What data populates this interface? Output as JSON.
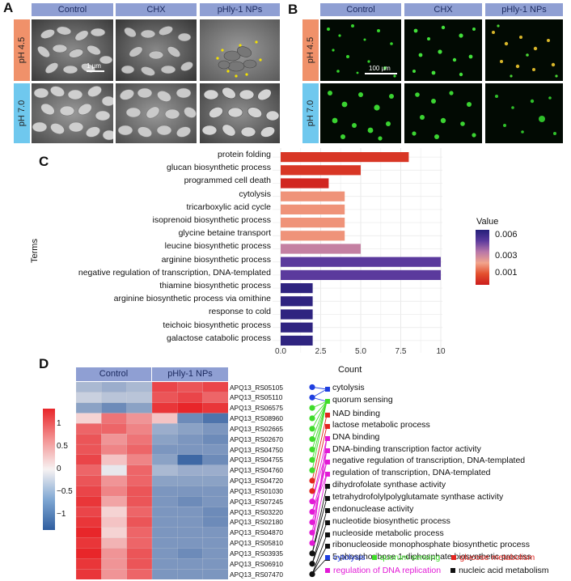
{
  "panel_letters": {
    "a": "A",
    "b": "B",
    "c": "C",
    "d": "D"
  },
  "panel_a": {
    "columns": [
      "Control",
      "CHX",
      "pHly-1 NPs"
    ],
    "rows": [
      "pH 4.5",
      "pH 7.0"
    ],
    "scale_bar": "1 µm"
  },
  "panel_b": {
    "columns": [
      "Control",
      "CHX",
      "pHly-1 NPs"
    ],
    "rows": [
      "pH 4.5",
      "pH 7.0"
    ],
    "scale_bar": "100 µm"
  },
  "colors": {
    "row_ph45": "#f0916a",
    "row_ph70": "#6fc8ee",
    "header": "#8f9fd3"
  },
  "chart_data": [
    {
      "type": "bar",
      "orientation": "horizontal",
      "categories": [
        "protein folding",
        "glucan biosynthetic process",
        "programmed cell death",
        "cytolysis",
        "tricarboxylic acid cycle",
        "isoprenoid biosynthetic process",
        "glycine betaine transport",
        "leucine biosynthetic process",
        "arginine biosynthetic process",
        "negative regulation of transcription, DNA-templated",
        "thiamine biosynthetic process",
        "arginine biosynthetic process via omithine",
        "response to cold",
        "teichoic  biosynthetic process",
        "galactose catabolic process"
      ],
      "values": [
        8,
        5,
        3,
        4,
        4,
        4,
        4,
        5,
        10,
        10,
        2,
        2,
        2,
        2,
        2
      ],
      "pvalues": [
        0.0015,
        0.0015,
        0.0012,
        0.0028,
        0.0028,
        0.0028,
        0.0028,
        0.0042,
        0.0055,
        0.0055,
        0.0063,
        0.0063,
        0.0063,
        0.0063,
        0.0063
      ],
      "xlabel": "Count",
      "ylabel": "Terms",
      "xlim": [
        0,
        10
      ],
      "xticks": [
        "0.0",
        "2.5",
        "5.0",
        "7.5",
        "10"
      ],
      "grid": true,
      "legend": {
        "title": "Value",
        "ticks": [
          "0.006",
          "0.003",
          "0.001"
        ],
        "placement": "right"
      }
    },
    {
      "type": "heatmap",
      "columns": [
        "Control",
        "pHly-1 NPs"
      ],
      "genes": [
        "APQ13_RS05105",
        "APQ13_RS05110",
        "APQ13_RS06575",
        "APQ13_RS08960",
        "APQ13_RS02665",
        "APQ13_RS02670",
        "APQ13_RS04750",
        "APQ13_RS04755",
        "APQ13_RS04760",
        "APQ13_RS04720",
        "APQ13_RS01030",
        "APQ13_RS07245",
        "APQ13_RS03220",
        "APQ13_RS02180",
        "APQ13_RS04870",
        "APQ13_RS05810",
        "APQ13_RS03935",
        "APQ13_RS06910",
        "APQ13_RS07470"
      ],
      "values": [
        [
          -0.5,
          -0.6,
          -0.5,
          1.1,
          1.0,
          1.1
        ],
        [
          -0.3,
          -0.4,
          -0.4,
          1.0,
          1.1,
          0.9
        ],
        [
          -0.7,
          -0.9,
          -0.7,
          1.2,
          1.3,
          1.2
        ],
        [
          0.2,
          0.8,
          0.6,
          0.3,
          -0.9,
          -1.1
        ],
        [
          0.9,
          0.9,
          0.7,
          -0.6,
          -0.7,
          -0.8
        ],
        [
          1.0,
          0.6,
          0.8,
          -0.7,
          -0.8,
          -0.9
        ],
        [
          1.0,
          0.7,
          0.9,
          -0.8,
          -0.8,
          -0.8
        ],
        [
          1.1,
          0.3,
          0.7,
          -0.7,
          -1.2,
          -0.9
        ],
        [
          0.9,
          -0.1,
          0.9,
          -0.5,
          -0.6,
          -0.6
        ],
        [
          1.0,
          0.6,
          0.9,
          -0.7,
          -0.7,
          -0.7
        ],
        [
          1.1,
          0.7,
          1.0,
          -0.8,
          -0.8,
          -0.8
        ],
        [
          1.2,
          0.5,
          1.0,
          -0.8,
          -0.9,
          -0.8
        ],
        [
          1.1,
          0.2,
          0.9,
          -0.8,
          -0.8,
          -0.9
        ],
        [
          1.2,
          0.3,
          1.0,
          -0.8,
          -0.8,
          -0.9
        ],
        [
          1.3,
          0.2,
          0.9,
          -0.8,
          -0.8,
          -0.8
        ],
        [
          1.2,
          0.4,
          0.9,
          -0.8,
          -0.8,
          -0.8
        ],
        [
          1.3,
          0.6,
          1.0,
          -0.8,
          -0.9,
          -0.8
        ],
        [
          1.2,
          0.6,
          1.0,
          -0.8,
          -0.8,
          -0.8
        ],
        [
          1.2,
          0.6,
          0.9,
          -0.8,
          -0.8,
          -0.8
        ]
      ],
      "colorbar_ticks": [
        "1",
        "0.5",
        "0",
        "−0.5",
        "−1"
      ],
      "annotations": [
        {
          "label": "cytolysis",
          "color": "#1f3fe0"
        },
        {
          "label": "quorum sensing",
          "color": "#3fdc2a"
        },
        {
          "label": "NAD binding",
          "color": "#e3251f"
        },
        {
          "label": "lactose metabolic process",
          "color": "#e3251f"
        },
        {
          "label": "DNA binding",
          "color": "#e21ad6"
        },
        {
          "label": "DNA-binding transcription factor activity",
          "color": "#e21ad6"
        },
        {
          "label": "negative regulation of transcription, DNA-templated",
          "color": "#e21ad6"
        },
        {
          "label": "regulation of transcription, DNA-templated",
          "color": "#e21ad6"
        },
        {
          "label": "dihydrofolate synthase activity",
          "color": "#111111"
        },
        {
          "label": "tetrahydrofolylpolyglutamate synthase activity",
          "color": "#111111"
        },
        {
          "label": "endonuclease activity",
          "color": "#111111"
        },
        {
          "label": "nucleotide biosynthetic process",
          "color": "#111111"
        },
        {
          "label": "nucleoside metabolic process",
          "color": "#111111"
        },
        {
          "label": "ribonucleoside monophosphate biosynthetic process",
          "color": "#111111"
        },
        {
          "label": "5-phosphoribose 1-diphosphate biosynthetic process",
          "color": "#111111"
        }
      ],
      "gene_colors": [
        "#1f3fe0",
        "#1f3fe0",
        "#3fdc2a",
        "#3fdc2a",
        "#3fdc2a",
        "#3fdc2a",
        "#3fdc2a",
        "#3fdc2a",
        "#3fdc2a",
        "#e3251f",
        "#e3251f",
        "#e21ad6",
        "#e21ad6",
        "#e21ad6",
        "#e21ad6",
        "#e21ad6",
        "#111111",
        "#111111",
        "#111111"
      ],
      "links": [
        [
          0,
          0
        ],
        [
          1,
          0
        ],
        [
          1,
          1
        ],
        [
          2,
          1
        ],
        [
          3,
          1
        ],
        [
          4,
          1
        ],
        [
          5,
          1
        ],
        [
          6,
          1
        ],
        [
          7,
          1
        ],
        [
          8,
          1
        ],
        [
          9,
          2
        ],
        [
          10,
          3
        ],
        [
          11,
          4
        ],
        [
          11,
          5
        ],
        [
          12,
          6
        ],
        [
          12,
          7
        ],
        [
          13,
          6
        ],
        [
          14,
          5
        ],
        [
          15,
          7
        ],
        [
          15,
          4
        ],
        [
          16,
          8
        ],
        [
          16,
          9
        ],
        [
          17,
          10
        ],
        [
          17,
          11
        ],
        [
          18,
          12
        ],
        [
          18,
          13
        ],
        [
          18,
          14
        ]
      ],
      "legend": [
        {
          "label": "cytolysis",
          "color": "#1f3fe0"
        },
        {
          "label": "quorum sensing",
          "color": "#3fdc2a"
        },
        {
          "label": "glucose metabolism",
          "color": "#e3251f"
        },
        {
          "label": "regulation of DNA replication",
          "color": "#e21ad6"
        },
        {
          "label": "nucleic acid metabolism",
          "color": "#111111"
        }
      ]
    }
  ]
}
